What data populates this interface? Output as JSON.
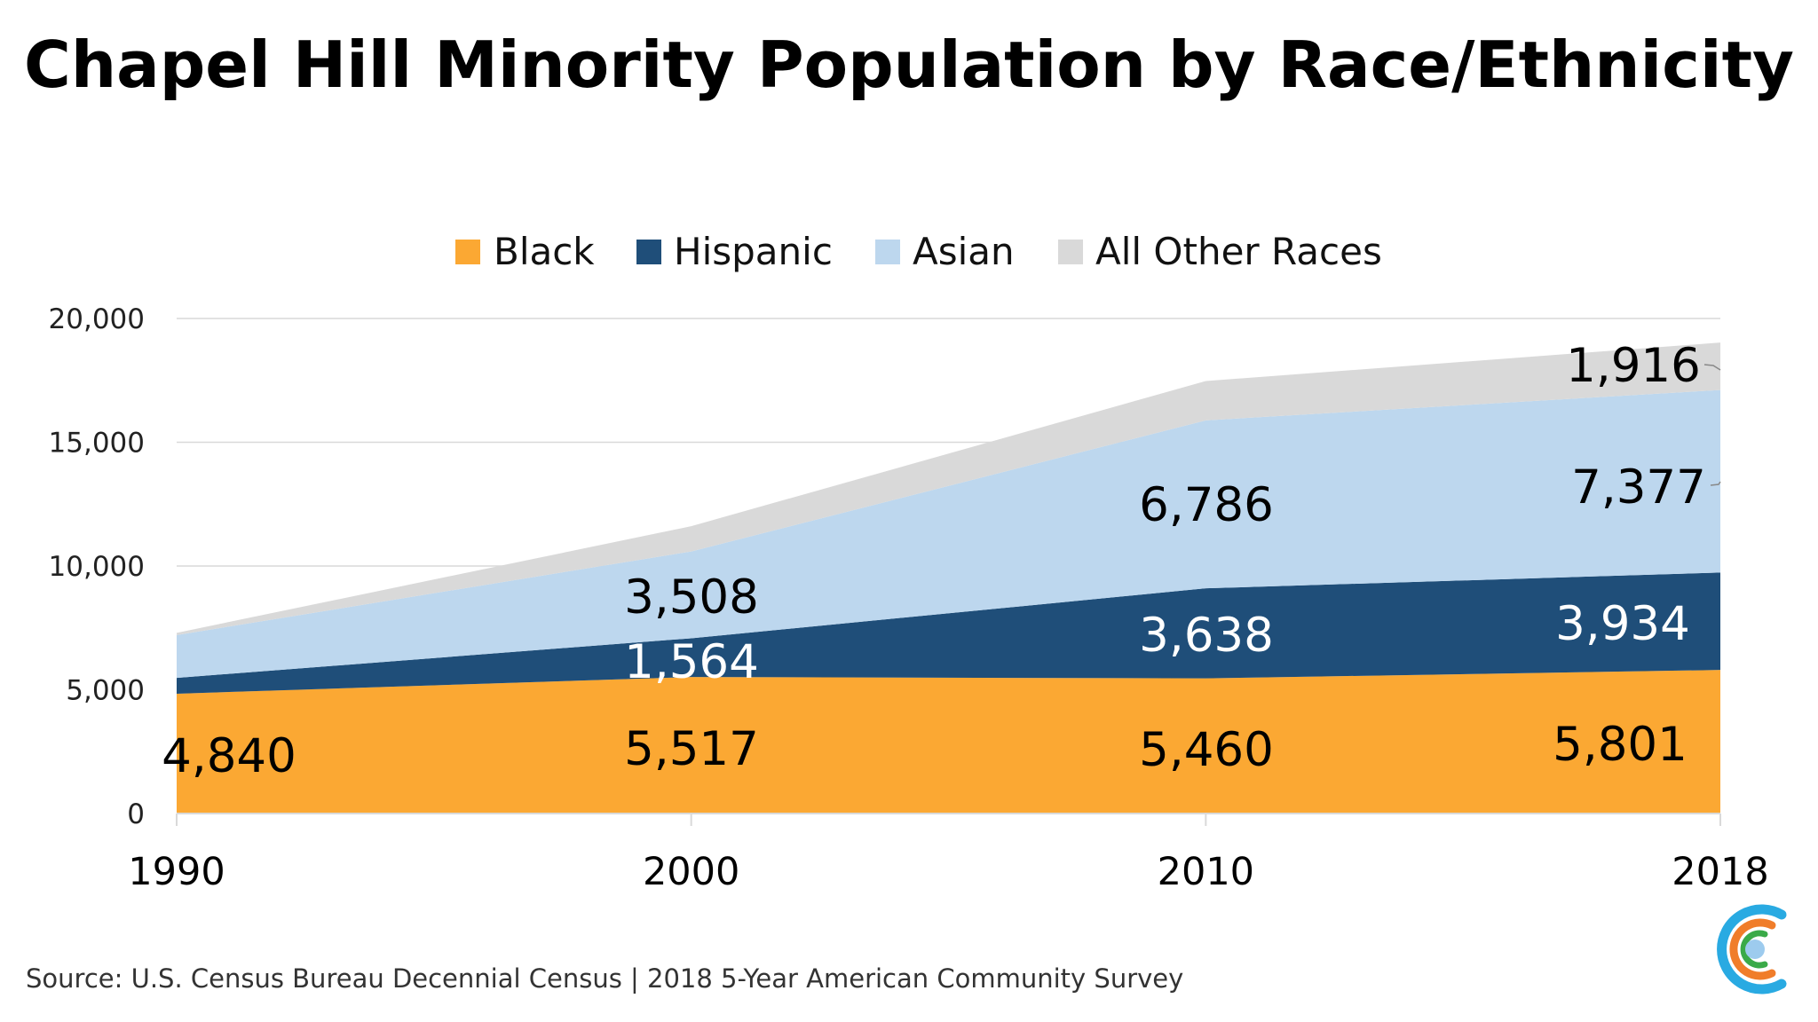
{
  "chart_data": {
    "type": "area",
    "stacked": true,
    "title": "Chapel Hill Minority Population by Race/Ethnicity",
    "xlabel": "",
    "ylabel": "",
    "categories": [
      "1990",
      "2000",
      "2010",
      "2018"
    ],
    "ylim": [
      0,
      20000
    ],
    "yticks": [
      0,
      5000,
      10000,
      15000,
      20000
    ],
    "ytick_labels": [
      "0",
      "5,000",
      "10,000",
      "15,000",
      "20,000"
    ],
    "grid": true,
    "legend_position": "top",
    "series": [
      {
        "name": "Black",
        "color": "#FBA833",
        "label_color": "#000000",
        "values": [
          4840,
          5517,
          5460,
          5801
        ],
        "labels": [
          "4,840",
          "5,517",
          "5,460",
          "5,801"
        ]
      },
      {
        "name": "Hispanic",
        "color": "#1F4E79",
        "label_color": "#FFFFFF",
        "values": [
          640,
          1564,
          3638,
          3934
        ],
        "labels": [
          null,
          "1,564",
          "3,638",
          "3,934"
        ]
      },
      {
        "name": "Asian",
        "color": "#BDD7EE",
        "label_color": "#000000",
        "values": [
          1730,
          3508,
          6786,
          7377
        ],
        "labels": [
          null,
          "3,508",
          "6,786",
          "7,377"
        ]
      },
      {
        "name": "All Other Races",
        "color": "#D9D9D9",
        "label_color": "#000000",
        "values": [
          90,
          1020,
          1590,
          1916
        ],
        "labels": [
          null,
          null,
          null,
          "1,916"
        ]
      }
    ]
  },
  "source": "Source: U.S. Census Bureau Decennial Census | 2018 5-Year American Community Survey",
  "logo": {
    "colors": [
      "#29AAE2",
      "#F07D2A",
      "#3AAA48",
      "#9DCBEE"
    ]
  }
}
